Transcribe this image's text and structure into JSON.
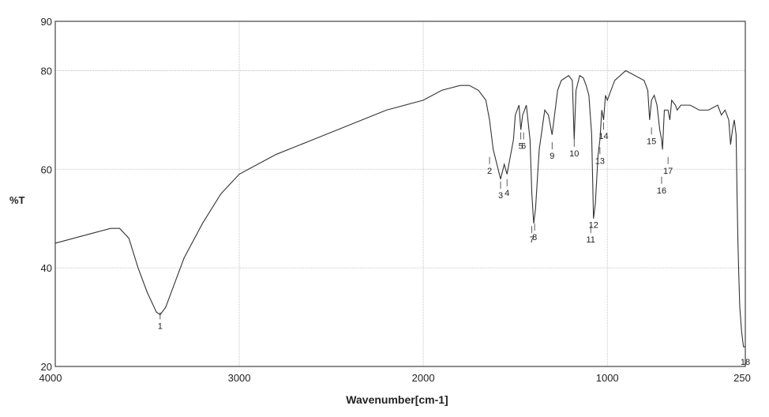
{
  "chart_data": {
    "type": "line",
    "title": "",
    "xlabel": "Wavenumber[cm-1]",
    "ylabel": "%T",
    "xlim": [
      4000,
      250
    ],
    "ylim": [
      20,
      90
    ],
    "x_reversed": true,
    "grid": true,
    "x_ticks": [
      {
        "value": 4000,
        "label": "4000"
      },
      {
        "value": 3000,
        "label": "3000"
      },
      {
        "value": 2000,
        "label": "2000"
      },
      {
        "value": 1000,
        "label": "1000"
      },
      {
        "value": 250,
        "label": "250"
      }
    ],
    "y_ticks": [
      {
        "value": 90,
        "label": "90"
      },
      {
        "value": 80,
        "label": "80"
      },
      {
        "value": 60,
        "label": "60"
      },
      {
        "value": 40,
        "label": "40"
      },
      {
        "value": 20,
        "label": "20"
      }
    ],
    "series": [
      {
        "x": [
          4000,
          3900,
          3800,
          3700,
          3650,
          3600,
          3550,
          3500,
          3450,
          3430,
          3400,
          3350,
          3300,
          3200,
          3100,
          3000,
          2900,
          2800,
          2600,
          2400,
          2200,
          2000,
          1900,
          1800,
          1750,
          1700,
          1660,
          1640,
          1620,
          1600,
          1580,
          1560,
          1545,
          1530,
          1510,
          1500,
          1480,
          1470,
          1460,
          1440,
          1420,
          1410,
          1400,
          1390,
          1380,
          1370,
          1340,
          1320,
          1300,
          1270,
          1250,
          1210,
          1190,
          1180,
          1170,
          1150,
          1130,
          1115,
          1100,
          1085,
          1075,
          1065,
          1050,
          1040,
          1030,
          1020,
          1010,
          1000,
          960,
          900,
          850,
          800,
          780,
          770,
          760,
          745,
          730,
          715,
          705,
          700,
          690,
          670,
          660,
          650,
          630,
          620,
          600,
          550,
          500,
          450,
          400,
          380,
          360,
          340,
          330,
          320,
          310,
          300,
          295,
          290,
          285,
          280,
          270,
          260,
          250
        ],
        "y": [
          45,
          46,
          47,
          48,
          48,
          46,
          40,
          35,
          31,
          30.5,
          32,
          37,
          42,
          49,
          55,
          59,
          61,
          63,
          66,
          69,
          72,
          74,
          76,
          77,
          77,
          76,
          74,
          70,
          64,
          61,
          58,
          61,
          59,
          62,
          66,
          71,
          73,
          68,
          71,
          73,
          66,
          55,
          49,
          52,
          58,
          64,
          72,
          71,
          67,
          76,
          78,
          79,
          78,
          66,
          76,
          79,
          78.5,
          77,
          75,
          67,
          50,
          53,
          63,
          66,
          72,
          70,
          75,
          74,
          78,
          80,
          79,
          78,
          76,
          70,
          74,
          75,
          73,
          68,
          66,
          64,
          72,
          72,
          70,
          74,
          73,
          72,
          73,
          73,
          72,
          72,
          73,
          71,
          72,
          70,
          65,
          68,
          70,
          67,
          55,
          45,
          38,
          32,
          27,
          24,
          24
        ]
      }
    ],
    "annotations": [
      {
        "label": "1",
        "x": 3430,
        "y": 30.5
      },
      {
        "label": "2",
        "x": 1640,
        "y": 62
      },
      {
        "label": "3",
        "x": 1580,
        "y": 57
      },
      {
        "label": "4",
        "x": 1545,
        "y": 57.5
      },
      {
        "label": "5",
        "x": 1470,
        "y": 67
      },
      {
        "label": "6",
        "x": 1455,
        "y": 67
      },
      {
        "label": "7",
        "x": 1410,
        "y": 48
      },
      {
        "label": "8",
        "x": 1395,
        "y": 48.5
      },
      {
        "label": "9",
        "x": 1300,
        "y": 65
      },
      {
        "label": "10",
        "x": 1180,
        "y": 65.5
      },
      {
        "label": "11",
        "x": 1090,
        "y": 48
      },
      {
        "label": "12",
        "x": 1075,
        "y": 51
      },
      {
        "label": "13",
        "x": 1040,
        "y": 64
      },
      {
        "label": "14",
        "x": 1020,
        "y": 69
      },
      {
        "label": "15",
        "x": 760,
        "y": 68
      },
      {
        "label": "16",
        "x": 705,
        "y": 58
      },
      {
        "label": "17",
        "x": 670,
        "y": 62
      },
      {
        "label": "18",
        "x": 250,
        "y": 21
      }
    ],
    "colors": {
      "line": "#333333",
      "grid": "#b5b5b5",
      "frame": "#444444",
      "label": "#222222"
    }
  }
}
